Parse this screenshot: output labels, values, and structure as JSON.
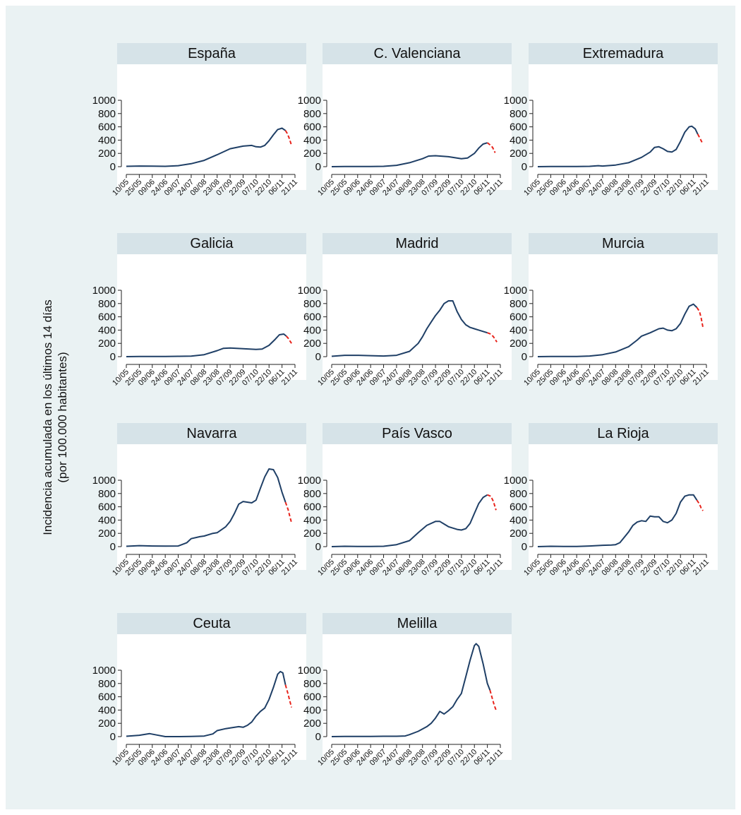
{
  "y_axis_label": [
    "Incidencia acumulada en los últimos 14 días",
    "(por 100.000 habitantes)"
  ],
  "colors": {
    "observed": "#1f3f66",
    "projected": "#e8231b",
    "strip": "#d6e3e8",
    "background": "#eaf2f3"
  },
  "chart_data": [
    {
      "type": "line",
      "title": "España",
      "x_tick_labels": [
        "10/05",
        "25/05",
        "09/06",
        "24/06",
        "09/07",
        "24/07",
        "08/08",
        "23/08",
        "07/09",
        "22/09",
        "07/10",
        "22/10",
        "06/11",
        "21/11"
      ],
      "y_ticks": [
        0,
        200,
        400,
        600,
        800,
        1000
      ],
      "x_range": [
        "10/05",
        "21/11"
      ],
      "series": [
        {
          "style": "solid",
          "x": [
            "10/05",
            "25/05",
            "09/06",
            "24/06",
            "09/07",
            "24/07",
            "08/08",
            "23/08",
            "07/09",
            "22/09",
            "02/10",
            "07/10",
            "12/10",
            "17/10",
            "22/10",
            "27/10",
            "01/11",
            "06/11",
            "10/11"
          ],
          "values": [
            5,
            10,
            8,
            5,
            15,
            45,
            95,
            180,
            270,
            310,
            320,
            300,
            295,
            320,
            390,
            480,
            560,
            580,
            545
          ]
        },
        {
          "style": "dashed",
          "x": [
            "10/11",
            "12/11",
            "14/11",
            "17/11"
          ],
          "values": [
            545,
            500,
            440,
            320
          ]
        }
      ]
    },
    {
      "type": "line",
      "title": "C. Valenciana",
      "x_tick_labels": [
        "10/05",
        "25/05",
        "09/06",
        "24/06",
        "09/07",
        "24/07",
        "08/08",
        "23/08",
        "07/09",
        "22/09",
        "07/10",
        "22/10",
        "06/11",
        "21/11"
      ],
      "y_ticks": [
        0,
        200,
        400,
        600,
        800,
        1000
      ],
      "x_range": [
        "10/05",
        "21/11"
      ],
      "series": [
        {
          "style": "solid",
          "x": [
            "10/05",
            "25/05",
            "09/06",
            "24/06",
            "09/07",
            "24/07",
            "08/08",
            "23/08",
            "30/08",
            "07/09",
            "22/09",
            "07/10",
            "14/10",
            "22/10",
            "27/10",
            "01/11",
            "06/11"
          ],
          "values": [
            0,
            2,
            3,
            3,
            5,
            20,
            60,
            120,
            160,
            165,
            150,
            120,
            130,
            200,
            280,
            340,
            360
          ]
        },
        {
          "style": "dashed",
          "x": [
            "06/11",
            "09/11",
            "12/11",
            "15/11"
          ],
          "values": [
            360,
            330,
            290,
            210
          ]
        }
      ]
    },
    {
      "type": "line",
      "title": "Extremadura",
      "x_tick_labels": [
        "10/05",
        "25/05",
        "09/06",
        "24/06",
        "09/07",
        "24/07",
        "08/08",
        "23/08",
        "07/09",
        "22/09",
        "07/10",
        "22/10",
        "06/11",
        "21/11"
      ],
      "y_ticks": [
        0,
        200,
        400,
        600,
        800,
        1000
      ],
      "x_range": [
        "10/05",
        "21/11"
      ],
      "series": [
        {
          "style": "solid",
          "x": [
            "10/05",
            "25/05",
            "09/06",
            "24/06",
            "09/07",
            "19/07",
            "24/07",
            "08/08",
            "23/08",
            "07/09",
            "17/09",
            "22/09",
            "27/09",
            "02/10",
            "07/10",
            "12/10",
            "17/10",
            "22/10",
            "27/10",
            "01/11",
            "04/11",
            "08/11",
            "11/11"
          ],
          "values": [
            0,
            2,
            3,
            3,
            5,
            15,
            10,
            25,
            60,
            140,
            220,
            290,
            300,
            270,
            230,
            220,
            260,
            380,
            520,
            600,
            610,
            570,
            490
          ]
        },
        {
          "style": "dashed",
          "x": [
            "11/11",
            "13/11",
            "15/11",
            "17/11"
          ],
          "values": [
            490,
            440,
            390,
            340
          ]
        }
      ]
    },
    {
      "type": "line",
      "title": "Galicia",
      "x_tick_labels": [
        "10/05",
        "25/05",
        "09/06",
        "24/06",
        "09/07",
        "24/07",
        "08/08",
        "23/08",
        "07/09",
        "22/09",
        "07/10",
        "22/10",
        "06/11",
        "21/11"
      ],
      "y_ticks": [
        0,
        200,
        400,
        600,
        800,
        1000
      ],
      "x_range": [
        "10/05",
        "21/11"
      ],
      "series": [
        {
          "style": "solid",
          "x": [
            "10/05",
            "25/05",
            "09/06",
            "24/06",
            "09/07",
            "24/07",
            "08/08",
            "23/08",
            "30/08",
            "07/09",
            "22/09",
            "07/10",
            "14/10",
            "22/10",
            "29/10",
            "03/11",
            "08/11",
            "11/11"
          ],
          "values": [
            0,
            2,
            3,
            3,
            5,
            8,
            30,
            90,
            125,
            130,
            120,
            110,
            115,
            170,
            260,
            330,
            340,
            310
          ]
        },
        {
          "style": "dashed",
          "x": [
            "11/11",
            "13/11",
            "15/11",
            "17/11"
          ],
          "values": [
            310,
            280,
            240,
            200
          ]
        }
      ]
    },
    {
      "type": "line",
      "title": "Madrid",
      "x_tick_labels": [
        "10/05",
        "25/05",
        "09/06",
        "24/06",
        "09/07",
        "24/07",
        "08/08",
        "23/08",
        "07/09",
        "22/09",
        "07/10",
        "22/10",
        "06/11",
        "21/11"
      ],
      "y_ticks": [
        0,
        200,
        400,
        600,
        800,
        1000
      ],
      "x_range": [
        "10/05",
        "21/11"
      ],
      "series": [
        {
          "style": "solid",
          "x": [
            "10/05",
            "25/05",
            "09/06",
            "24/06",
            "09/07",
            "24/07",
            "08/08",
            "18/08",
            "23/08",
            "28/08",
            "02/09",
            "07/09",
            "12/09",
            "17/09",
            "22/09",
            "27/09",
            "02/10",
            "07/10",
            "12/10",
            "17/10",
            "22/10",
            "27/10",
            "01/11",
            "06/11"
          ],
          "values": [
            5,
            20,
            20,
            15,
            10,
            20,
            80,
            200,
            300,
            420,
            520,
            620,
            700,
            800,
            840,
            840,
            680,
            560,
            480,
            440,
            420,
            400,
            380,
            360
          ]
        },
        {
          "style": "dashed",
          "x": [
            "06/11",
            "10/11",
            "13/11",
            "17/11"
          ],
          "values": [
            360,
            340,
            300,
            220
          ]
        }
      ]
    },
    {
      "type": "line",
      "title": "Murcia",
      "x_tick_labels": [
        "10/05",
        "25/05",
        "09/06",
        "24/06",
        "09/07",
        "24/07",
        "08/08",
        "23/08",
        "07/09",
        "22/09",
        "07/10",
        "22/10",
        "06/11",
        "21/11"
      ],
      "y_ticks": [
        0,
        200,
        400,
        600,
        800,
        1000
      ],
      "x_range": [
        "10/05",
        "21/11"
      ],
      "series": [
        {
          "style": "solid",
          "x": [
            "10/05",
            "25/05",
            "09/06",
            "24/06",
            "09/07",
            "24/07",
            "08/08",
            "23/08",
            "02/09",
            "07/09",
            "17/09",
            "27/09",
            "02/10",
            "07/10",
            "12/10",
            "17/10",
            "22/10",
            "27/10",
            "01/11",
            "06/11",
            "10/11"
          ],
          "values": [
            0,
            2,
            3,
            3,
            10,
            30,
            70,
            150,
            250,
            310,
            360,
            420,
            430,
            400,
            390,
            420,
            500,
            640,
            760,
            790,
            740
          ]
        },
        {
          "style": "dashed",
          "x": [
            "10/11",
            "13/11",
            "15/11",
            "17/11"
          ],
          "values": [
            740,
            680,
            580,
            440
          ]
        }
      ]
    },
    {
      "type": "line",
      "title": "Navarra",
      "x_tick_labels": [
        "10/05",
        "25/05",
        "09/06",
        "24/06",
        "09/07",
        "24/07",
        "08/08",
        "23/08",
        "07/09",
        "22/09",
        "07/10",
        "22/10",
        "06/11",
        "21/11"
      ],
      "y_ticks": [
        0,
        200,
        400,
        600,
        800,
        1000
      ],
      "x_range": [
        "10/05",
        "21/11"
      ],
      "series": [
        {
          "style": "solid",
          "x": [
            "10/05",
            "25/05",
            "09/06",
            "24/06",
            "09/07",
            "19/07",
            "24/07",
            "03/08",
            "08/08",
            "18/08",
            "23/08",
            "02/09",
            "07/09",
            "12/09",
            "17/09",
            "22/09",
            "02/10",
            "07/10",
            "12/10",
            "17/10",
            "22/10",
            "27/10",
            "01/11",
            "06/11",
            "10/11"
          ],
          "values": [
            5,
            15,
            10,
            8,
            10,
            60,
            120,
            150,
            160,
            200,
            210,
            300,
            380,
            500,
            640,
            680,
            660,
            700,
            880,
            1050,
            1170,
            1160,
            1040,
            820,
            670
          ]
        },
        {
          "style": "dashed",
          "x": [
            "10/11",
            "13/11",
            "15/11",
            "17/11"
          ],
          "values": [
            670,
            560,
            460,
            360
          ]
        }
      ]
    },
    {
      "type": "line",
      "title": "País Vasco",
      "x_tick_labels": [
        "10/05",
        "25/05",
        "09/06",
        "24/06",
        "09/07",
        "24/07",
        "08/08",
        "23/08",
        "07/09",
        "22/09",
        "07/10",
        "22/10",
        "06/11",
        "21/11"
      ],
      "y_ticks": [
        0,
        200,
        400,
        600,
        800,
        1000
      ],
      "x_range": [
        "10/05",
        "21/11"
      ],
      "series": [
        {
          "style": "solid",
          "x": [
            "10/05",
            "25/05",
            "09/06",
            "24/06",
            "09/07",
            "24/07",
            "08/08",
            "18/08",
            "28/08",
            "07/09",
            "12/09",
            "17/09",
            "22/09",
            "02/10",
            "07/10",
            "12/10",
            "17/10",
            "22/10",
            "27/10",
            "01/11",
            "06/11"
          ],
          "values": [
            0,
            5,
            3,
            3,
            5,
            30,
            90,
            210,
            320,
            380,
            380,
            340,
            300,
            260,
            250,
            270,
            350,
            500,
            650,
            740,
            780
          ]
        },
        {
          "style": "dashed",
          "x": [
            "06/11",
            "10/11",
            "13/11",
            "16/11"
          ],
          "values": [
            780,
            760,
            680,
            550
          ]
        }
      ]
    },
    {
      "type": "line",
      "title": "La Rioja",
      "x_tick_labels": [
        "10/05",
        "25/05",
        "09/06",
        "24/06",
        "09/07",
        "24/07",
        "08/08",
        "23/08",
        "07/09",
        "22/09",
        "07/10",
        "22/10",
        "06/11",
        "21/11"
      ],
      "y_ticks": [
        0,
        200,
        400,
        600,
        800,
        1000
      ],
      "x_range": [
        "10/05",
        "21/11"
      ],
      "series": [
        {
          "style": "solid",
          "x": [
            "10/05",
            "25/05",
            "09/06",
            "24/06",
            "09/07",
            "24/07",
            "03/08",
            "08/08",
            "13/08",
            "23/08",
            "28/08",
            "02/09",
            "07/09",
            "12/09",
            "17/09",
            "22/09",
            "27/09",
            "02/10",
            "07/10",
            "12/10",
            "17/10",
            "22/10",
            "27/10",
            "01/11",
            "06/11",
            "10/11"
          ],
          "values": [
            0,
            5,
            3,
            3,
            10,
            20,
            25,
            30,
            60,
            220,
            320,
            370,
            390,
            380,
            460,
            450,
            450,
            380,
            360,
            400,
            500,
            670,
            760,
            780,
            780,
            700
          ]
        },
        {
          "style": "dashed",
          "x": [
            "10/11",
            "13/11",
            "15/11",
            "17/11"
          ],
          "values": [
            700,
            640,
            580,
            540
          ]
        }
      ]
    },
    {
      "type": "line",
      "title": "Ceuta",
      "x_tick_labels": [
        "10/05",
        "25/05",
        "09/06",
        "24/06",
        "09/07",
        "24/07",
        "08/08",
        "23/08",
        "07/09",
        "22/09",
        "07/10",
        "22/10",
        "06/11",
        "21/11"
      ],
      "y_ticks": [
        0,
        200,
        400,
        600,
        800,
        1000
      ],
      "x_range": [
        "10/05",
        "21/11"
      ],
      "series": [
        {
          "style": "solid",
          "x": [
            "10/05",
            "25/05",
            "06/06",
            "14/06",
            "24/06",
            "09/07",
            "24/07",
            "08/08",
            "18/08",
            "23/08",
            "02/09",
            "07/09",
            "17/09",
            "22/09",
            "27/09",
            "02/10",
            "07/10",
            "12/10",
            "17/10",
            "22/10",
            "27/10",
            "01/11",
            "04/11",
            "07/11",
            "10/11"
          ],
          "values": [
            5,
            20,
            45,
            25,
            0,
            0,
            3,
            8,
            40,
            90,
            120,
            130,
            150,
            140,
            170,
            220,
            310,
            380,
            430,
            560,
            740,
            940,
            980,
            960,
            780
          ]
        },
        {
          "style": "dashed",
          "x": [
            "10/11",
            "13/11",
            "15/11",
            "17/11"
          ],
          "values": [
            780,
            640,
            540,
            440
          ]
        }
      ]
    },
    {
      "type": "line",
      "title": "Melilla",
      "x_tick_labels": [
        "10/05",
        "25/05",
        "09/06",
        "24/06",
        "09/07",
        "24/07",
        "08/08",
        "23/08",
        "07/09",
        "22/09",
        "07/10",
        "22/10",
        "06/11",
        "21/11"
      ],
      "y_ticks": [
        0,
        200,
        400,
        600,
        800,
        1000
      ],
      "x_range": [
        "10/05",
        "21/11"
      ],
      "series": [
        {
          "style": "solid",
          "x": [
            "10/05",
            "25/05",
            "09/06",
            "24/06",
            "09/07",
            "24/07",
            "03/08",
            "08/08",
            "18/08",
            "28/08",
            "02/09",
            "07/09",
            "12/09",
            "17/09",
            "22/09",
            "27/09",
            "02/10",
            "07/10",
            "12/10",
            "17/10",
            "22/10",
            "24/10",
            "27/10",
            "01/11",
            "06/11",
            "09/11"
          ],
          "values": [
            0,
            2,
            3,
            3,
            5,
            5,
            10,
            30,
            80,
            150,
            200,
            280,
            380,
            340,
            390,
            450,
            560,
            650,
            900,
            1150,
            1370,
            1400,
            1360,
            1100,
            800,
            700
          ]
        },
        {
          "style": "dashed",
          "x": [
            "09/11",
            "12/11",
            "14/11",
            "16/11"
          ],
          "values": [
            700,
            560,
            470,
            400
          ]
        }
      ]
    }
  ]
}
